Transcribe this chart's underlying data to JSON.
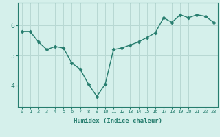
{
  "x": [
    0,
    1,
    2,
    3,
    4,
    5,
    6,
    7,
    8,
    9,
    10,
    11,
    12,
    13,
    14,
    15,
    16,
    17,
    18,
    19,
    20,
    21,
    22,
    23
  ],
  "y": [
    5.8,
    5.8,
    5.45,
    5.2,
    5.3,
    5.25,
    4.75,
    4.55,
    4.05,
    3.65,
    4.05,
    5.2,
    5.25,
    5.35,
    5.45,
    5.6,
    5.75,
    6.25,
    6.1,
    6.35,
    6.25,
    6.35,
    6.3,
    6.1
  ],
  "line_color": "#267d6e",
  "marker": "D",
  "markersize": 2.5,
  "linewidth": 1.0,
  "bg_color": "#d5f0eb",
  "grid_color": "#b8d8d3",
  "xlabel": "Humidex (Indice chaleur)",
  "ylim": [
    3.3,
    6.75
  ],
  "yticks": [
    4,
    5,
    6
  ],
  "xlim": [
    -0.5,
    23.5
  ],
  "xticks": [
    0,
    1,
    2,
    3,
    4,
    5,
    6,
    7,
    8,
    9,
    10,
    11,
    12,
    13,
    14,
    15,
    16,
    17,
    18,
    19,
    20,
    21,
    22,
    23
  ],
  "tick_color": "#267d6e",
  "label_color": "#267d6e",
  "axis_color": "#267d6e"
}
